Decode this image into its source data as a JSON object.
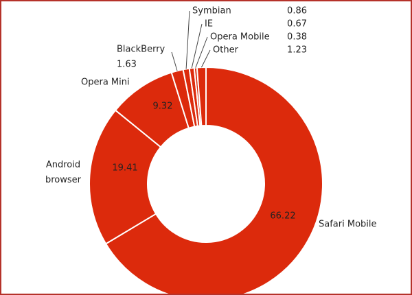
{
  "chart_data": {
    "type": "donut",
    "categories": [
      "Safari Mobile",
      "Android browser",
      "Opera Mini",
      "BlackBerry",
      "Symbian",
      "IE",
      "Opera Mobile",
      "Other"
    ],
    "values": [
      66.22,
      19.41,
      9.32,
      1.63,
      0.86,
      0.67,
      0.38,
      1.23
    ],
    "color": "#dc2a0c"
  }
}
